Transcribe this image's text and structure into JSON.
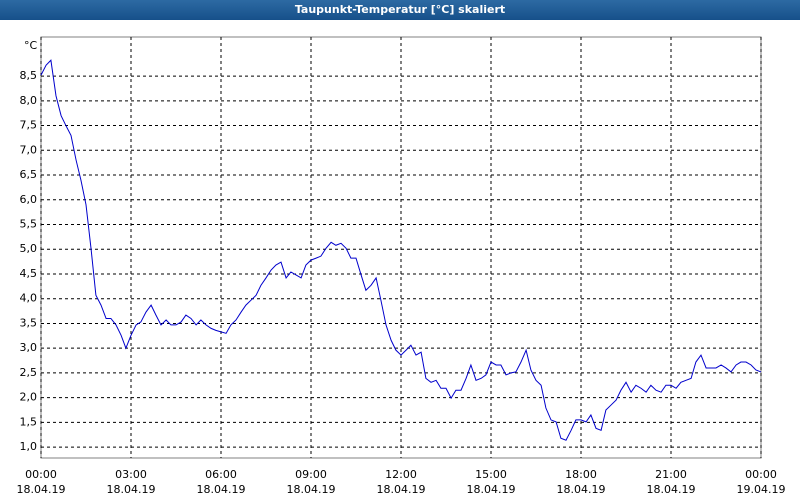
{
  "chart_data": {
    "type": "line",
    "title": "Taupunkt-Temperatur [°C] skaliert",
    "y_label": "°C",
    "x": [
      0,
      0.17,
      0.33,
      0.5,
      0.67,
      0.83,
      1,
      1.17,
      1.33,
      1.5,
      1.67,
      1.83,
      2,
      2.17,
      2.33,
      2.5,
      2.67,
      2.83,
      3,
      3.17,
      3.33,
      3.5,
      3.67,
      3.83,
      4,
      4.17,
      4.33,
      4.5,
      4.67,
      4.83,
      5,
      5.17,
      5.33,
      5.5,
      5.67,
      5.83,
      6,
      6.17,
      6.33,
      6.5,
      6.67,
      6.83,
      7,
      7.17,
      7.33,
      7.5,
      7.67,
      7.83,
      8,
      8.17,
      8.33,
      8.5,
      8.67,
      8.83,
      9,
      9.17,
      9.33,
      9.5,
      9.67,
      9.83,
      10,
      10.17,
      10.33,
      10.5,
      10.67,
      10.83,
      11,
      11.17,
      11.33,
      11.5,
      11.67,
      11.83,
      12,
      12.17,
      12.33,
      12.5,
      12.67,
      12.83,
      13,
      13.17,
      13.33,
      13.5,
      13.67,
      13.83,
      14,
      14.17,
      14.33,
      14.5,
      14.67,
      14.83,
      15,
      15.17,
      15.33,
      15.5,
      15.67,
      15.83,
      16,
      16.17,
      16.33,
      16.5,
      16.67,
      16.83,
      17,
      17.17,
      17.33,
      17.5,
      17.67,
      17.83,
      18,
      18.17,
      18.33,
      18.5,
      18.67,
      18.83,
      19,
      19.17,
      19.33,
      19.5,
      19.67,
      19.83,
      20,
      20.17,
      20.33,
      20.5,
      20.67,
      20.83,
      21,
      21.17,
      21.33,
      21.5,
      21.67,
      21.83,
      22,
      22.17,
      22.33,
      22.5,
      22.67,
      22.83,
      23,
      23.17,
      23.33,
      23.5,
      23.67,
      23.83,
      24
    ],
    "series": [
      {
        "name": "Taupunkt",
        "color": "#0000cc",
        "values": [
          8.52,
          8.72,
          8.82,
          8.1,
          7.7,
          7.5,
          7.3,
          6.8,
          6.4,
          5.9,
          5.0,
          4.07,
          3.87,
          3.6,
          3.6,
          3.47,
          3.26,
          3.0,
          3.26,
          3.47,
          3.53,
          3.73,
          3.87,
          3.67,
          3.47,
          3.57,
          3.47,
          3.47,
          3.53,
          3.67,
          3.6,
          3.47,
          3.57,
          3.47,
          3.4,
          3.36,
          3.33,
          3.3,
          3.47,
          3.57,
          3.73,
          3.87,
          3.97,
          4.07,
          4.27,
          4.42,
          4.58,
          4.68,
          4.74,
          4.42,
          4.54,
          4.48,
          4.42,
          4.68,
          4.78,
          4.82,
          4.86,
          5.02,
          5.14,
          5.08,
          5.12,
          5.02,
          4.82,
          4.82,
          4.48,
          4.17,
          4.27,
          4.42,
          3.97,
          3.47,
          3.16,
          2.96,
          2.86,
          2.96,
          3.06,
          2.86,
          2.92,
          2.39,
          2.31,
          2.35,
          2.19,
          2.19,
          1.99,
          2.15,
          2.15,
          2.39,
          2.66,
          2.35,
          2.39,
          2.46,
          2.72,
          2.66,
          2.66,
          2.46,
          2.5,
          2.52,
          2.72,
          2.96,
          2.56,
          2.35,
          2.25,
          1.79,
          1.55,
          1.51,
          1.18,
          1.14,
          1.34,
          1.55,
          1.55,
          1.51,
          1.65,
          1.38,
          1.34,
          1.75,
          1.85,
          1.95,
          2.15,
          2.31,
          2.11,
          2.25,
          2.19,
          2.11,
          2.25,
          2.15,
          2.11,
          2.25,
          2.25,
          2.19,
          2.31,
          2.35,
          2.39,
          2.72,
          2.86,
          2.6,
          2.6,
          2.6,
          2.66,
          2.6,
          2.52,
          2.66,
          2.72,
          2.72,
          2.66,
          2.56,
          2.52
        ]
      }
    ],
    "xlim": [
      0,
      24
    ],
    "xticks": [
      {
        "value": 0,
        "label": "00:00",
        "date": "18.04.19"
      },
      {
        "value": 3,
        "label": "03:00",
        "date": "18.04.19"
      },
      {
        "value": 6,
        "label": "06:00",
        "date": "18.04.19"
      },
      {
        "value": 9,
        "label": "09:00",
        "date": "18.04.19"
      },
      {
        "value": 12,
        "label": "12:00",
        "date": "18.04.19"
      },
      {
        "value": 15,
        "label": "15:00",
        "date": "18.04.19"
      },
      {
        "value": 18,
        "label": "18:00",
        "date": "18.04.19"
      },
      {
        "value": 21,
        "label": "21:00",
        "date": "18.04.19"
      },
      {
        "value": 24,
        "label": "00:00",
        "date": "19.04.19"
      }
    ],
    "ylim": [
      0.78,
      9.29
    ],
    "yticks": [
      {
        "value": 1,
        "label": "1,0"
      },
      {
        "value": 1.5,
        "label": "1,5"
      },
      {
        "value": 2,
        "label": "2,0"
      },
      {
        "value": 2.5,
        "label": "2,5"
      },
      {
        "value": 3,
        "label": "3,0"
      },
      {
        "value": 3.5,
        "label": "3,5"
      },
      {
        "value": 4,
        "label": "4,0"
      },
      {
        "value": 4.5,
        "label": "4,5"
      },
      {
        "value": 5,
        "label": "5,0"
      },
      {
        "value": 5.5,
        "label": "5,5"
      },
      {
        "value": 6,
        "label": "6,0"
      },
      {
        "value": 6.5,
        "label": "6,5"
      },
      {
        "value": 7,
        "label": "7,0"
      },
      {
        "value": 7.5,
        "label": "7,5"
      },
      {
        "value": 8,
        "label": "8,0"
      },
      {
        "value": 8.5,
        "label": "8,5"
      }
    ],
    "grid": true
  }
}
